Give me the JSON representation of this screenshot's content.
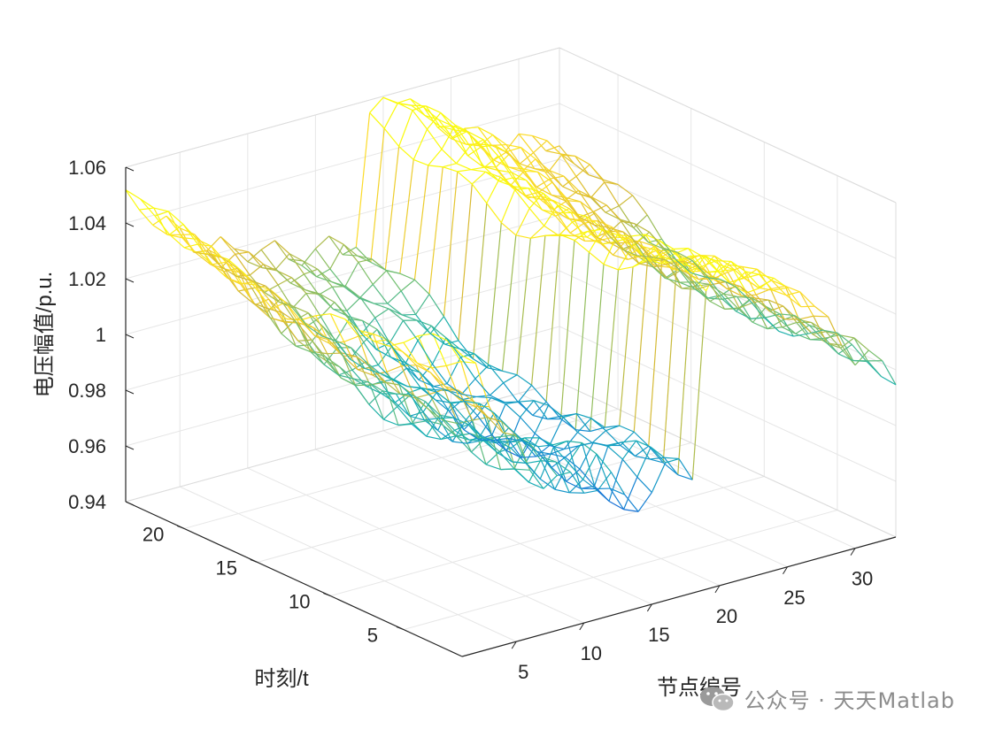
{
  "chart_data": {
    "type": "surface",
    "xlabel": "节点编号",
    "ylabel": "时刻/t",
    "zlabel": "电压幅值/p.u.",
    "x_ticks": [
      5,
      10,
      15,
      20,
      25,
      30
    ],
    "y_ticks": [
      5,
      10,
      15,
      20
    ],
    "z_ticks": [
      "0.94",
      "0.96",
      "0.98",
      "1",
      "1.02",
      "1.04",
      "1.06"
    ],
    "xlim": [
      1,
      33
    ],
    "ylim": [
      1,
      24
    ],
    "zlim": [
      0.94,
      1.06
    ],
    "grid": true,
    "colormap": "parula",
    "nodes": [
      1,
      2,
      3,
      4,
      5,
      6,
      7,
      8,
      9,
      10,
      11,
      12,
      13,
      14,
      15,
      16,
      17,
      18,
      19,
      20,
      21,
      22,
      23,
      24,
      25,
      26,
      27,
      28,
      29,
      30,
      31,
      32,
      33
    ],
    "time_steps": [
      1,
      2,
      3,
      4,
      5,
      6,
      7,
      8,
      9,
      10,
      11,
      12,
      13,
      14,
      15,
      16,
      17,
      18,
      19,
      20,
      21,
      22,
      23,
      24
    ],
    "voltage_profile_at_t1": [
      1.048,
      1.04,
      1.028,
      1.02,
      1.012,
      0.997,
      0.995,
      0.998,
      0.992,
      0.985,
      0.99,
      0.992,
      0.978,
      0.975,
      0.984,
      0.988,
      0.986,
      0.983,
      1.05,
      1.052,
      1.05,
      1.046,
      1.044,
      1.041,
      1.04,
      1.036,
      1.03,
      1.022,
      1.016,
      1.009,
      1.007,
      1.002,
      0.998
    ],
    "voltage_profile_at_t24": [
      1.048,
      1.045,
      1.04,
      1.036,
      1.03,
      1.026,
      1.024,
      1.022,
      1.019,
      1.018,
      1.017,
      1.015,
      1.012,
      1.011,
      1.01,
      1.012,
      1.01,
      1.011,
      1.052,
      1.058,
      1.06,
      1.057,
      1.048,
      1.044,
      1.042,
      1.039,
      1.036,
      1.034,
      1.031,
      1.03,
      1.029,
      1.028,
      1.026
    ]
  },
  "watermark": {
    "text": "公众号 · 天天Matlab",
    "icon": "wechat-icon"
  }
}
